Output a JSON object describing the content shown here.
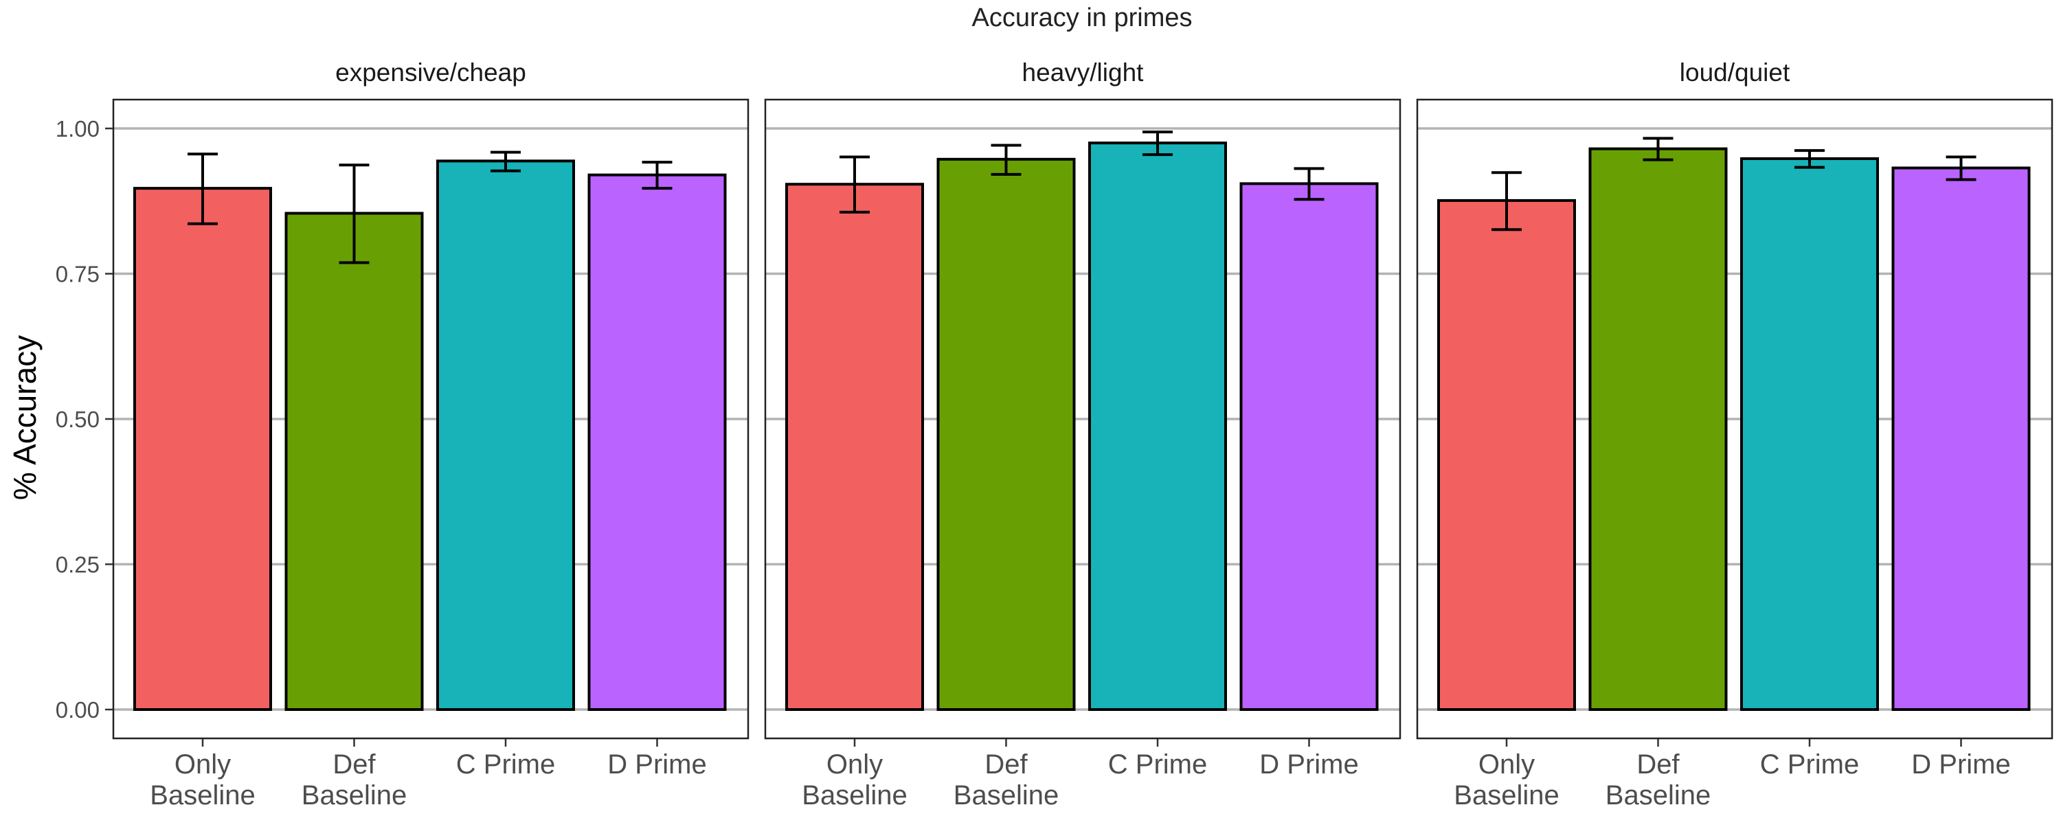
{
  "chart_data": {
    "type": "bar",
    "title": "Accuracy in primes",
    "ylabel": "% Accuracy",
    "xlabel": "",
    "ylim": [
      -0.05,
      1.05
    ],
    "yticks": [
      0.0,
      0.25,
      0.5,
      0.75,
      1.0
    ],
    "ytick_labels": [
      "0.00",
      "0.25",
      "0.50",
      "0.75",
      "1.00"
    ],
    "grid": "horizontal major",
    "legend": "none",
    "categories": [
      "Only\nBaseline",
      "Def\nBaseline",
      "C Prime",
      "D Prime"
    ],
    "category_colors": [
      "#F26160",
      "#68A003",
      "#17B3B8",
      "#BB63FF"
    ],
    "facets": [
      {
        "label": "expensive/cheap",
        "values": [
          0.897,
          0.854,
          0.944,
          0.92
        ],
        "err_low": [
          0.836,
          0.769,
          0.927,
          0.897
        ],
        "err_high": [
          0.956,
          0.937,
          0.959,
          0.942
        ]
      },
      {
        "label": "heavy/light",
        "values": [
          0.904,
          0.947,
          0.975,
          0.905
        ],
        "err_low": [
          0.856,
          0.921,
          0.955,
          0.878
        ],
        "err_high": [
          0.951,
          0.971,
          0.994,
          0.931
        ]
      },
      {
        "label": "loud/quiet",
        "values": [
          0.876,
          0.965,
          0.948,
          0.932
        ],
        "err_low": [
          0.826,
          0.946,
          0.933,
          0.912
        ],
        "err_high": [
          0.924,
          0.983,
          0.962,
          0.951
        ]
      }
    ]
  }
}
